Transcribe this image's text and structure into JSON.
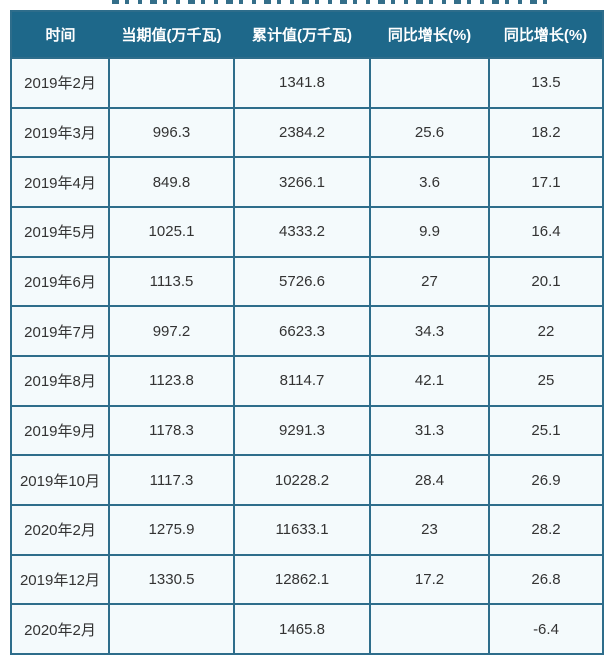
{
  "page": {
    "background": "#ffffff",
    "note_colors": {
      "header_bg": "#1e688a",
      "header_text": "#ffffff",
      "border_color": "#2e6d8b",
      "cell_bg": "#f4fafc",
      "cell_text": "#333333"
    }
  },
  "table": {
    "columns": [
      "时间",
      "当期值(万千瓦)",
      "累计值(万千瓦)",
      "同比增长(%)",
      "同比增长(%)"
    ],
    "rows": [
      [
        "2019年2月",
        "",
        "1341.8",
        "",
        "13.5"
      ],
      [
        "2019年3月",
        "996.3",
        "2384.2",
        "25.6",
        "18.2"
      ],
      [
        "2019年4月",
        "849.8",
        "3266.1",
        "3.6",
        "17.1"
      ],
      [
        "2019年5月",
        "1025.1",
        "4333.2",
        "9.9",
        "16.4"
      ],
      [
        "2019年6月",
        "1113.5",
        "5726.6",
        "27",
        "20.1"
      ],
      [
        "2019年7月",
        "997.2",
        "6623.3",
        "34.3",
        "22"
      ],
      [
        "2019年8月",
        "1123.8",
        "8114.7",
        "42.1",
        "25"
      ],
      [
        "2019年9月",
        "1178.3",
        "9291.3",
        "31.3",
        "25.1"
      ],
      [
        "2019年10月",
        "1117.3",
        "10228.2",
        "28.4",
        "26.9"
      ],
      [
        "2020年2月",
        "1275.9",
        "11633.1",
        "23",
        "28.2"
      ],
      [
        "2019年12月",
        "1330.5",
        "12862.1",
        "17.2",
        "26.8"
      ],
      [
        "2020年2月",
        "",
        "1465.8",
        "",
        "-6.4"
      ]
    ]
  },
  "chart_data": {
    "type": "table",
    "title": "",
    "columns": [
      "时间",
      "当期值(万千瓦)",
      "累计值(万千瓦)",
      "同比增长(%)",
      "同比增长(%)"
    ],
    "categories": [
      "2019年2月",
      "2019年3月",
      "2019年4月",
      "2019年5月",
      "2019年6月",
      "2019年7月",
      "2019年8月",
      "2019年9月",
      "2019年10月",
      "2020年2月",
      "2019年12月",
      "2020年2月"
    ],
    "series": [
      {
        "name": "当期值(万千瓦)",
        "values": [
          null,
          996.3,
          849.8,
          1025.1,
          1113.5,
          997.2,
          1123.8,
          1178.3,
          1117.3,
          1275.9,
          1330.5,
          null
        ]
      },
      {
        "name": "累计值(万千瓦)",
        "values": [
          1341.8,
          2384.2,
          3266.1,
          4333.2,
          5726.6,
          6623.3,
          8114.7,
          9291.3,
          10228.2,
          11633.1,
          12862.1,
          1465.8
        ]
      },
      {
        "name": "同比增长(%)",
        "values": [
          null,
          25.6,
          3.6,
          9.9,
          27,
          34.3,
          42.1,
          31.3,
          28.4,
          23,
          17.2,
          null
        ]
      },
      {
        "name": "同比增长(%) (累计)",
        "values": [
          13.5,
          18.2,
          17.1,
          16.4,
          20.1,
          22,
          25,
          25.1,
          26.9,
          28.2,
          26.8,
          -6.4
        ]
      }
    ],
    "layout_hints": {
      "grid": "on",
      "header_position": "top",
      "cell_alignment": "center"
    }
  }
}
